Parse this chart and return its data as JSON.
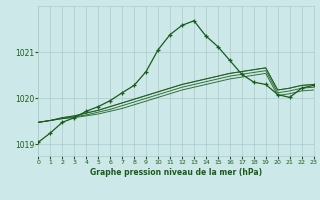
{
  "title": "Graphe pression niveau de la mer (hPa)",
  "background_color": "#cce8e8",
  "grid_color": "#aacccc",
  "line_color": "#1a5c1a",
  "xlim": [
    0,
    23
  ],
  "ylim": [
    1018.75,
    1022.0
  ],
  "yticks": [
    1019,
    1020,
    1021
  ],
  "xticks": [
    0,
    1,
    2,
    3,
    4,
    5,
    6,
    7,
    8,
    9,
    10,
    11,
    12,
    13,
    14,
    15,
    16,
    17,
    18,
    19,
    20,
    21,
    22,
    23
  ],
  "hours": [
    0,
    1,
    2,
    3,
    4,
    5,
    6,
    7,
    8,
    9,
    10,
    11,
    12,
    13,
    14,
    15,
    16,
    17,
    18,
    19,
    20,
    21,
    22,
    23
  ],
  "pressure_main": [
    1019.05,
    1019.25,
    1019.48,
    1019.58,
    1019.72,
    1019.82,
    1019.95,
    1020.12,
    1020.28,
    1020.58,
    1021.05,
    1021.38,
    1021.58,
    1021.68,
    1021.35,
    1021.12,
    1020.82,
    1020.52,
    1020.35,
    1020.3,
    1020.08,
    1020.02,
    1020.22,
    1020.28
  ],
  "smooth_lines": [
    [
      1019.48,
      1019.52,
      1019.58,
      1019.62,
      1019.68,
      1019.74,
      1019.82,
      1019.9,
      1019.98,
      1020.06,
      1020.14,
      1020.22,
      1020.3,
      1020.36,
      1020.42,
      1020.48,
      1020.54,
      1020.58,
      1020.62,
      1020.66,
      1020.18,
      1020.22,
      1020.28,
      1020.3
    ],
    [
      1019.48,
      1019.52,
      1019.58,
      1019.62,
      1019.68,
      1019.74,
      1019.82,
      1019.9,
      1019.98,
      1020.06,
      1020.14,
      1020.22,
      1020.3,
      1020.36,
      1020.42,
      1020.48,
      1020.54,
      1020.58,
      1020.62,
      1020.66,
      1020.18,
      1020.22,
      1020.28,
      1020.3
    ],
    [
      1019.48,
      1019.52,
      1019.56,
      1019.6,
      1019.64,
      1019.7,
      1019.76,
      1019.84,
      1019.92,
      1020.0,
      1020.08,
      1020.16,
      1020.24,
      1020.3,
      1020.36,
      1020.42,
      1020.48,
      1020.52,
      1020.56,
      1020.6,
      1020.12,
      1020.16,
      1020.22,
      1020.24
    ],
    [
      1019.48,
      1019.52,
      1019.56,
      1019.58,
      1019.62,
      1019.66,
      1019.72,
      1019.78,
      1019.86,
      1019.94,
      1020.02,
      1020.1,
      1020.18,
      1020.24,
      1020.3,
      1020.36,
      1020.42,
      1020.46,
      1020.5,
      1020.54,
      1020.06,
      1020.1,
      1020.16,
      1020.18
    ]
  ]
}
